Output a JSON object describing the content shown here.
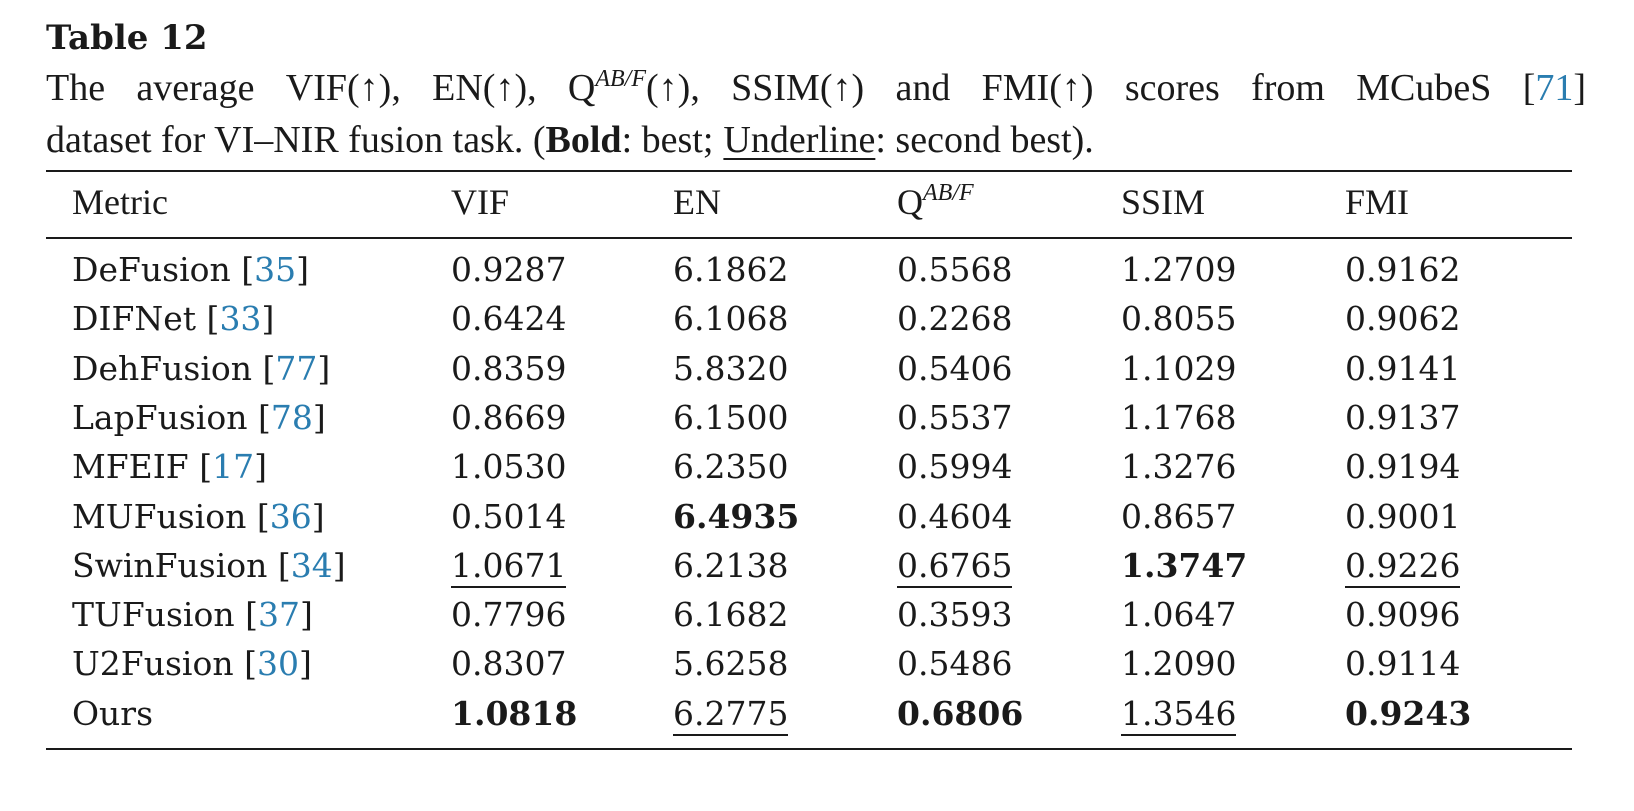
{
  "table": {
    "title": "Table 12",
    "caption": {
      "line1_words": [
        "The",
        "average",
        "VIF(↑),",
        "EN(↑),",
        "Q",
        "AB/F",
        "(↑),",
        "SSIM(↑)",
        "and",
        "FMI(↑)",
        "scores",
        "from",
        "MCubeS",
        "[",
        "71",
        "]"
      ],
      "line2": {
        "pre": "dataset for VI–NIR fusion task. (",
        "bold_word": "Bold",
        "mid": ": best;",
        "underline_word": "Underline",
        "post": ": second best)."
      }
    },
    "header": {
      "metric": "Metric",
      "vif": "VIF",
      "en": "EN",
      "q_base": "Q",
      "q_sup": "AB/F",
      "ssim": "SSIM",
      "fmi": "FMI"
    },
    "rows": [
      {
        "method": "DeFusion",
        "ref": "35",
        "vif": "0.9287",
        "en": "6.1862",
        "q": "0.5568",
        "ssim": "1.2709",
        "fmi": "0.9162"
      },
      {
        "method": "DIFNet",
        "ref": "33",
        "vif": "0.6424",
        "en": "6.1068",
        "q": "0.2268",
        "ssim": "0.8055",
        "fmi": "0.9062"
      },
      {
        "method": "DehFusion",
        "ref": "77",
        "vif": "0.8359",
        "en": "5.8320",
        "q": "0.5406",
        "ssim": "1.1029",
        "fmi": "0.9141"
      },
      {
        "method": "LapFusion",
        "ref": "78",
        "vif": "0.8669",
        "en": "6.1500",
        "q": "0.5537",
        "ssim": "1.1768",
        "fmi": "0.9137"
      },
      {
        "method": "MFEIF",
        "ref": "17",
        "vif": "1.0530",
        "en": "6.2350",
        "q": "0.5994",
        "ssim": "1.3276",
        "fmi": "0.9194"
      },
      {
        "method": "MUFusion",
        "ref": "36",
        "vif": "0.5014",
        "en": "6.4935",
        "q": "0.4604",
        "ssim": "0.8657",
        "fmi": "0.9001"
      },
      {
        "method": "SwinFusion",
        "ref": "34",
        "vif": "1.0671",
        "en": "6.2138",
        "q": "0.6765",
        "ssim": "1.3747",
        "fmi": "0.9226"
      },
      {
        "method": "TUFusion",
        "ref": "37",
        "vif": "0.7796",
        "en": "6.1682",
        "q": "0.3593",
        "ssim": "1.0647",
        "fmi": "0.9096"
      },
      {
        "method": "U2Fusion",
        "ref": "30",
        "vif": "0.8307",
        "en": "5.6258",
        "q": "0.5486",
        "ssim": "1.2090",
        "fmi": "0.9114"
      },
      {
        "method": "Ours",
        "ref": "",
        "vif": "1.0818",
        "en": "6.2775",
        "q": "0.6806",
        "ssim": "1.3546",
        "fmi": "0.9243"
      }
    ],
    "best": {
      "vif": "Ours",
      "en": "MUFusion",
      "q": "Ours",
      "ssim": "SwinFusion",
      "fmi": "Ours"
    },
    "second_best": {
      "vif": "SwinFusion",
      "en": "Ours",
      "q": "SwinFusion",
      "ssim": "Ours",
      "fmi": "SwinFusion"
    },
    "colors": {
      "text": "#1a1a1a",
      "citation": "#2a7db0"
    }
  }
}
